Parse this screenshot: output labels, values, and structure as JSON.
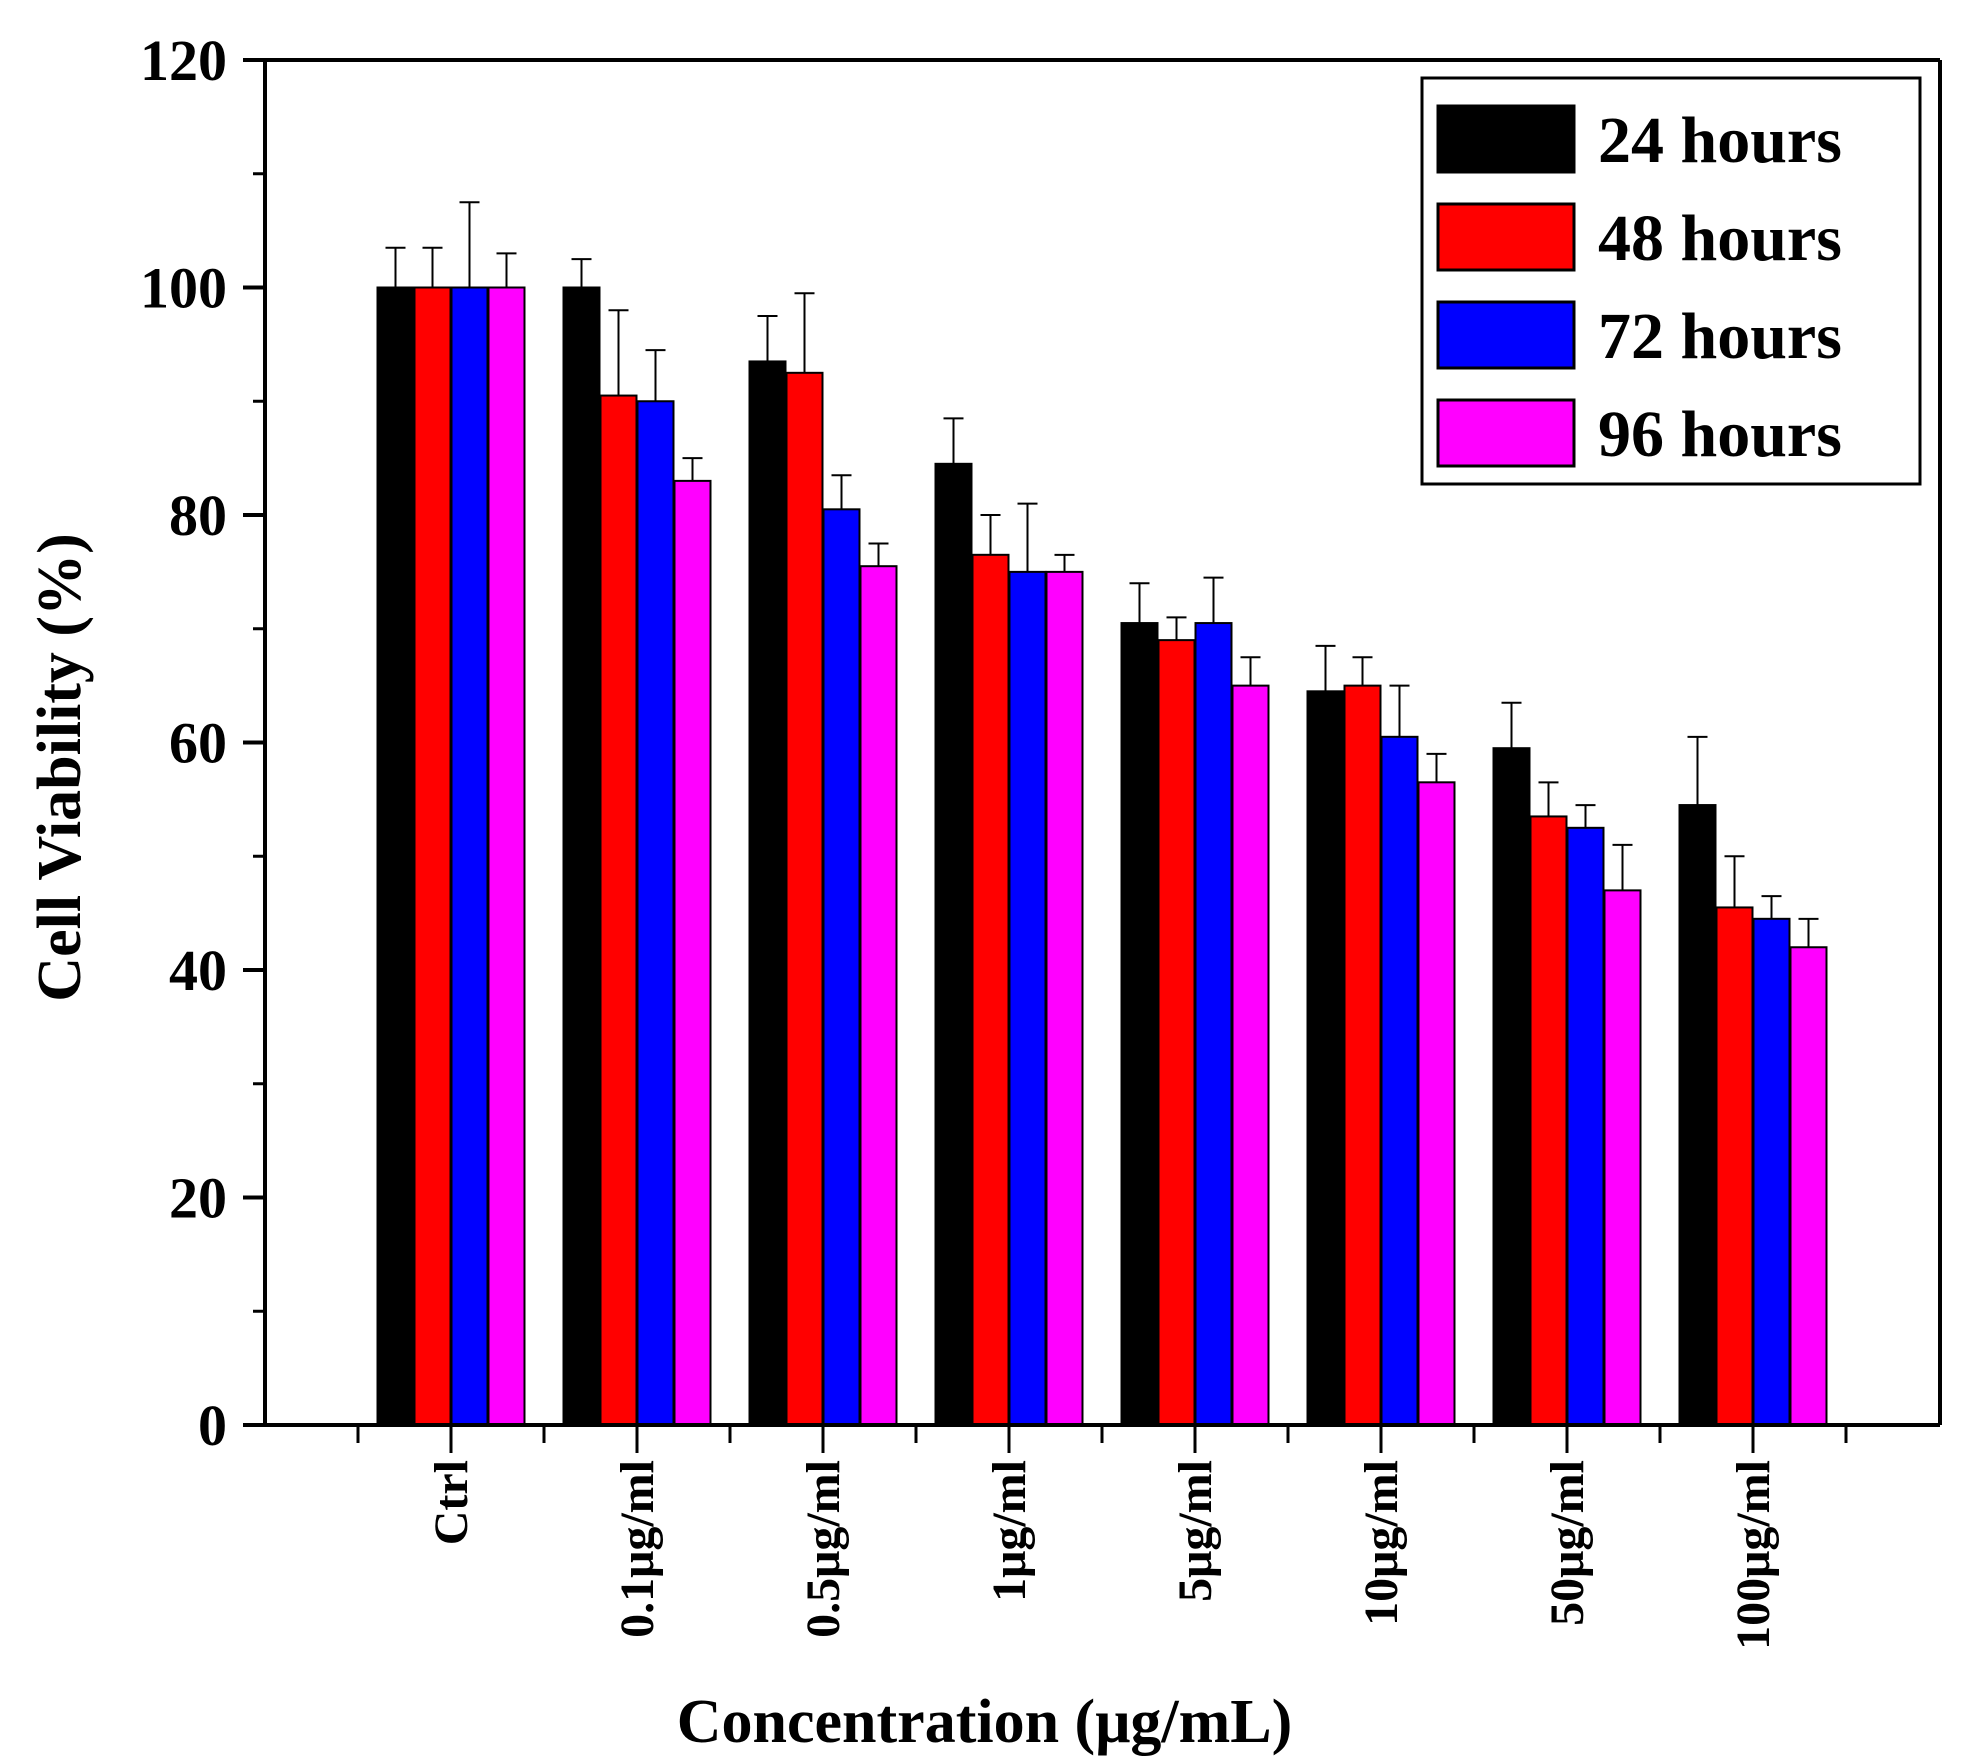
{
  "chart_data": {
    "type": "bar",
    "title": "",
    "xlabel": "Concentration (μg/mL)",
    "ylabel": "Cell Viability (%)",
    "ylim": [
      0,
      120
    ],
    "yticks": [
      0,
      20,
      40,
      60,
      80,
      100,
      120
    ],
    "categories": [
      "Ctrl",
      "0.1μg/ml",
      "0.5μg/ml",
      "1μg/ml",
      "5μg/ml",
      "10μg/ml",
      "50μg/ml",
      "100μg/ml"
    ],
    "legend_position": "top-right",
    "series": [
      {
        "name": "24 hours",
        "color": "#000000",
        "values": [
          100,
          100,
          93.5,
          84.5,
          70.5,
          64.5,
          59.5,
          54.5
        ],
        "errors": [
          3.5,
          2.5,
          4,
          4,
          3.5,
          4,
          4,
          6
        ]
      },
      {
        "name": "48 hours",
        "color": "#ff0000",
        "values": [
          100,
          90.5,
          92.5,
          76.5,
          69,
          65,
          53.5,
          45.5
        ],
        "errors": [
          3.5,
          7.5,
          7,
          3.5,
          2,
          2.5,
          3,
          4.5
        ]
      },
      {
        "name": "72 hours",
        "color": "#0000ff",
        "values": [
          100,
          90,
          80.5,
          75,
          70.5,
          60.5,
          52.5,
          44.5
        ],
        "errors": [
          7.5,
          4.5,
          3,
          6,
          4,
          4.5,
          2,
          2
        ]
      },
      {
        "name": "96 hours",
        "color": "#ff00ff",
        "values": [
          100,
          83,
          75.5,
          75,
          65,
          56.5,
          47,
          42
        ],
        "errors": [
          3,
          2,
          2,
          1.5,
          2.5,
          2.5,
          4,
          2.5
        ]
      }
    ]
  }
}
